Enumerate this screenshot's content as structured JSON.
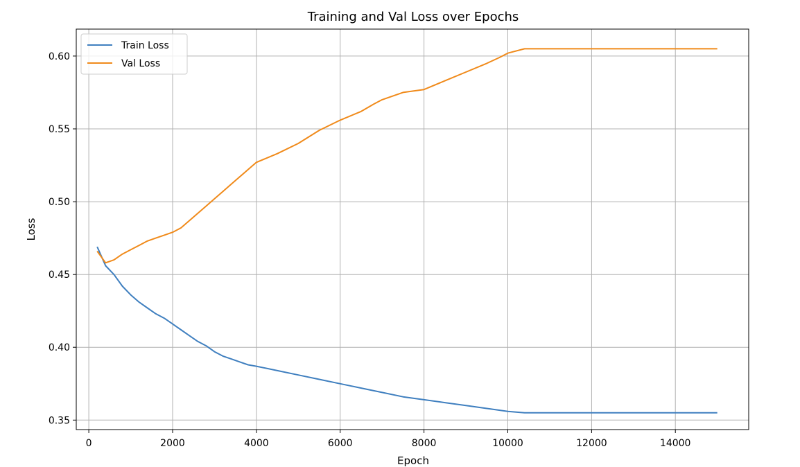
{
  "chart_data": {
    "type": "line",
    "title": "Training and Val Loss over Epochs",
    "xlabel": "Epoch",
    "ylabel": "Loss",
    "xlim": [
      -300,
      15750
    ],
    "ylim": [
      0.3435,
      0.6185
    ],
    "xticks": [
      0,
      2000,
      4000,
      6000,
      8000,
      10000,
      12000,
      14000
    ],
    "yticks": [
      0.35,
      0.4,
      0.45,
      0.5,
      0.55,
      0.6
    ],
    "xtick_labels": [
      "0",
      "2000",
      "4000",
      "6000",
      "8000",
      "10000",
      "12000",
      "14000"
    ],
    "ytick_labels": [
      "0.35",
      "0.40",
      "0.45",
      "0.50",
      "0.55",
      "0.60"
    ],
    "grid": true,
    "legend_position": "top-left",
    "series": [
      {
        "name": "Train Loss",
        "color": "#3f7fbf",
        "x": [
          200,
          400,
          600,
          800,
          1000,
          1200,
          1400,
          1600,
          1800,
          2000,
          2200,
          2400,
          2600,
          2800,
          3000,
          3200,
          3400,
          3600,
          3800,
          4000,
          4500,
          5000,
          5500,
          6000,
          6500,
          7000,
          7500,
          8000,
          8500,
          9000,
          9500,
          10000,
          10400,
          11000,
          12000,
          13000,
          14000,
          15000
        ],
        "values": [
          0.469,
          0.456,
          0.45,
          0.442,
          0.436,
          0.431,
          0.427,
          0.423,
          0.42,
          0.416,
          0.412,
          0.408,
          0.404,
          0.401,
          0.397,
          0.394,
          0.392,
          0.39,
          0.388,
          0.387,
          0.384,
          0.381,
          0.378,
          0.375,
          0.372,
          0.369,
          0.366,
          0.364,
          0.362,
          0.36,
          0.358,
          0.356,
          0.355,
          0.355,
          0.355,
          0.355,
          0.355,
          0.355
        ]
      },
      {
        "name": "Val Loss",
        "color": "#f08a1a",
        "x": [
          200,
          400,
          600,
          800,
          1000,
          1200,
          1400,
          1600,
          1800,
          2000,
          2200,
          2400,
          2600,
          2800,
          3000,
          3200,
          3400,
          3600,
          3800,
          4000,
          4500,
          5000,
          5500,
          6000,
          6500,
          6800,
          7000,
          7500,
          8000,
          8500,
          9000,
          9500,
          9800,
          10000,
          10400,
          11000,
          12000,
          13000,
          14000,
          15000
        ],
        "values": [
          0.466,
          0.458,
          0.46,
          0.464,
          0.467,
          0.47,
          0.473,
          0.475,
          0.477,
          0.479,
          0.482,
          0.487,
          0.492,
          0.497,
          0.502,
          0.507,
          0.512,
          0.517,
          0.522,
          0.527,
          0.533,
          0.54,
          0.549,
          0.556,
          0.562,
          0.567,
          0.57,
          0.575,
          0.577,
          0.583,
          0.589,
          0.595,
          0.599,
          0.602,
          0.605,
          0.605,
          0.605,
          0.605,
          0.605,
          0.605
        ]
      }
    ]
  }
}
